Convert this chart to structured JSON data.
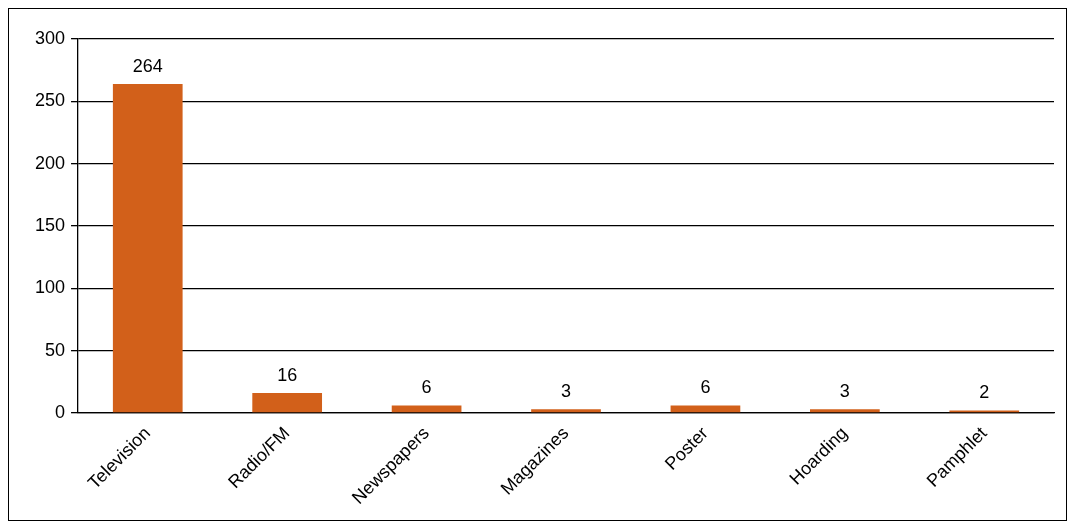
{
  "chart_data": {
    "type": "bar",
    "categories": [
      "Television",
      "Radio/FM",
      "Newspapers",
      "Magazines",
      "Poster",
      "Hoarding",
      "Pamphlet"
    ],
    "values": [
      264,
      16,
      6,
      3,
      6,
      3,
      2
    ],
    "color": "#d2601a",
    "ylim": [
      0,
      300
    ],
    "yticks": [
      0,
      50,
      100,
      150,
      200,
      250,
      300
    ],
    "grid": "y",
    "data_labels": true,
    "legend": false
  }
}
